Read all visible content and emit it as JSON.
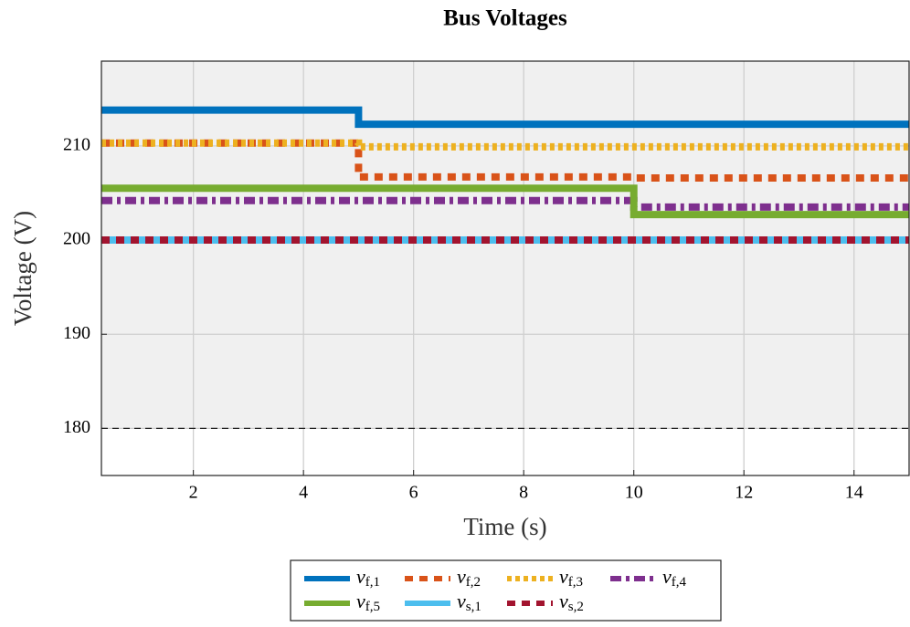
{
  "chart_data": {
    "type": "line",
    "title": "Bus Voltages",
    "x_label": "Time (s)",
    "y_label": "Voltage (V)",
    "x": [
      0.33,
      5,
      5,
      10,
      10,
      15
    ],
    "series": [
      {
        "name": "vf,1",
        "color": "#0072bd",
        "style": "solid",
        "values": [
          213.8,
          213.8,
          212.3,
          212.3,
          212.3,
          212.3
        ]
      },
      {
        "name": "vf,2",
        "color": "#d95319",
        "style": "dashed",
        "values": [
          210.3,
          210.3,
          206.7,
          206.7,
          206.6,
          206.6
        ]
      },
      {
        "name": "vf,3",
        "color": "#edb120",
        "style": "dotted",
        "values": [
          210.3,
          210.3,
          209.9,
          209.9,
          209.9,
          209.9
        ]
      },
      {
        "name": "vf,4",
        "color": "#7e2f8e",
        "style": "dashdot",
        "values": [
          204.2,
          204.2,
          204.2,
          204.2,
          203.5,
          203.5
        ]
      },
      {
        "name": "vf,5",
        "color": "#77ac30",
        "style": "solid",
        "values": [
          205.5,
          205.5,
          205.5,
          205.5,
          202.7,
          202.7
        ]
      },
      {
        "name": "vs,1",
        "color": "#4dbeee",
        "style": "solid",
        "values": [
          200,
          200,
          200,
          200,
          200,
          200
        ]
      },
      {
        "name": "vs,2",
        "color": "#a2142f",
        "style": "dashed",
        "values": [
          200,
          200,
          200,
          200,
          200,
          200
        ]
      }
    ],
    "xlim": [
      0.33,
      15
    ],
    "ylim": [
      175,
      219
    ],
    "xticks": [
      2,
      4,
      6,
      8,
      10,
      12,
      14
    ],
    "yticks": [
      180,
      190,
      200,
      210
    ],
    "limit_line": 180,
    "grid": true,
    "legend": "bottom"
  }
}
